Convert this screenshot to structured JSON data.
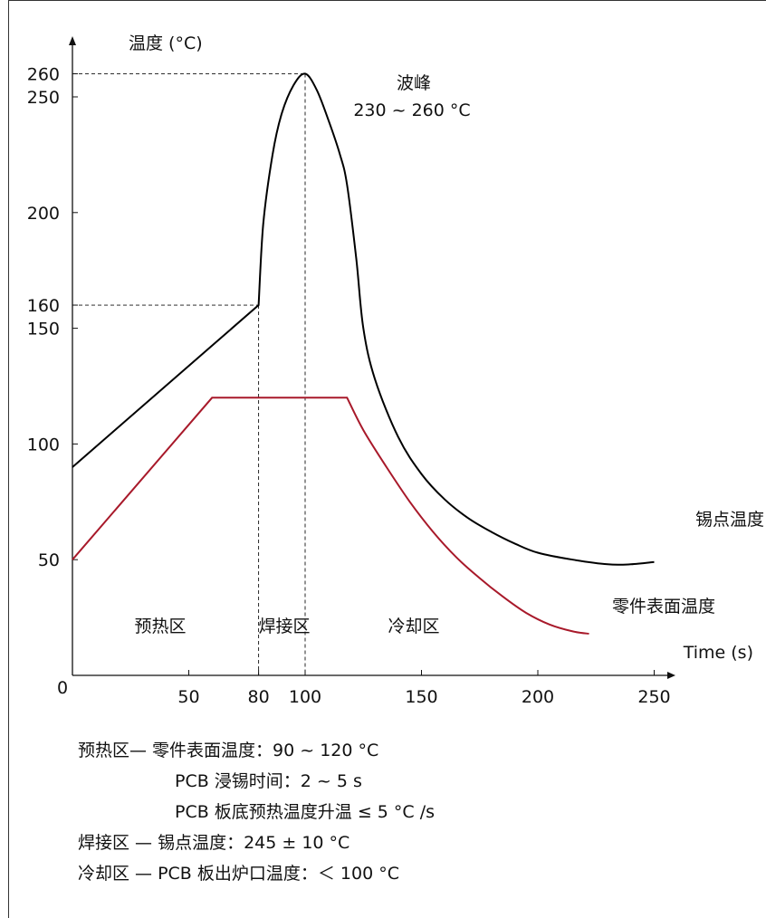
{
  "chart_data": {
    "type": "line",
    "ylabel": "温度 (°C)",
    "xlabel": "Time (s)",
    "origin_label": "0",
    "x_ticks": [
      50,
      80,
      100,
      150,
      200,
      250
    ],
    "y_ticks": [
      50,
      100,
      150,
      160,
      200,
      250,
      260
    ],
    "xlim": [
      0,
      260
    ],
    "ylim": [
      0,
      270
    ],
    "series": [
      {
        "name": "锡点温度",
        "color": "#000000",
        "points": [
          [
            0,
            90
          ],
          [
            80,
            160
          ],
          [
            82,
            195
          ],
          [
            86,
            225
          ],
          [
            90,
            243
          ],
          [
            95,
            255
          ],
          [
            100,
            260
          ],
          [
            105,
            253
          ],
          [
            110,
            240
          ],
          [
            115,
            225
          ],
          [
            118,
            212
          ],
          [
            122,
            180
          ],
          [
            125,
            150
          ],
          [
            130,
            128
          ],
          [
            140,
            103
          ],
          [
            150,
            87
          ],
          [
            160,
            76
          ],
          [
            170,
            68
          ],
          [
            180,
            62
          ],
          [
            190,
            57
          ],
          [
            200,
            53
          ],
          [
            215,
            50
          ],
          [
            230,
            48
          ],
          [
            240,
            48
          ],
          [
            250,
            49
          ]
        ]
      },
      {
        "name": "零件表面温度",
        "color": "#a8192a",
        "points": [
          [
            0,
            50
          ],
          [
            60,
            120
          ],
          [
            118,
            120
          ],
          [
            125,
            106
          ],
          [
            135,
            90
          ],
          [
            145,
            75
          ],
          [
            155,
            62
          ],
          [
            165,
            51
          ],
          [
            175,
            42
          ],
          [
            185,
            34
          ],
          [
            195,
            27
          ],
          [
            205,
            22
          ],
          [
            215,
            19
          ],
          [
            222,
            18
          ]
        ]
      }
    ],
    "reference_lines": {
      "horizontal": [
        {
          "y": 260,
          "x_to": 100
        },
        {
          "y": 160,
          "x_to": 80
        }
      ],
      "vertical": [
        {
          "x": 80,
          "y_to": 160
        },
        {
          "x": 100,
          "y_to": 260
        }
      ]
    },
    "annotations": {
      "peak_title": "波峰",
      "peak_range": "230 ~ 260 °C",
      "zone_preheat": "预热区",
      "zone_solder": "焊接区",
      "zone_cool": "冷却区"
    }
  },
  "notes": {
    "line1": "预热区— 零件表面温度：90 ~ 120 °C",
    "line2": "PCB 浸锡时间：2 ~ 5 s",
    "line3": "PCB 板底预热温度升温 ≤ 5 °C /s",
    "line4": "焊接区 — 锡点温度：245 ± 10 °C",
    "line5": "冷却区 — PCB 板出炉口温度：＜ 100 °C"
  }
}
